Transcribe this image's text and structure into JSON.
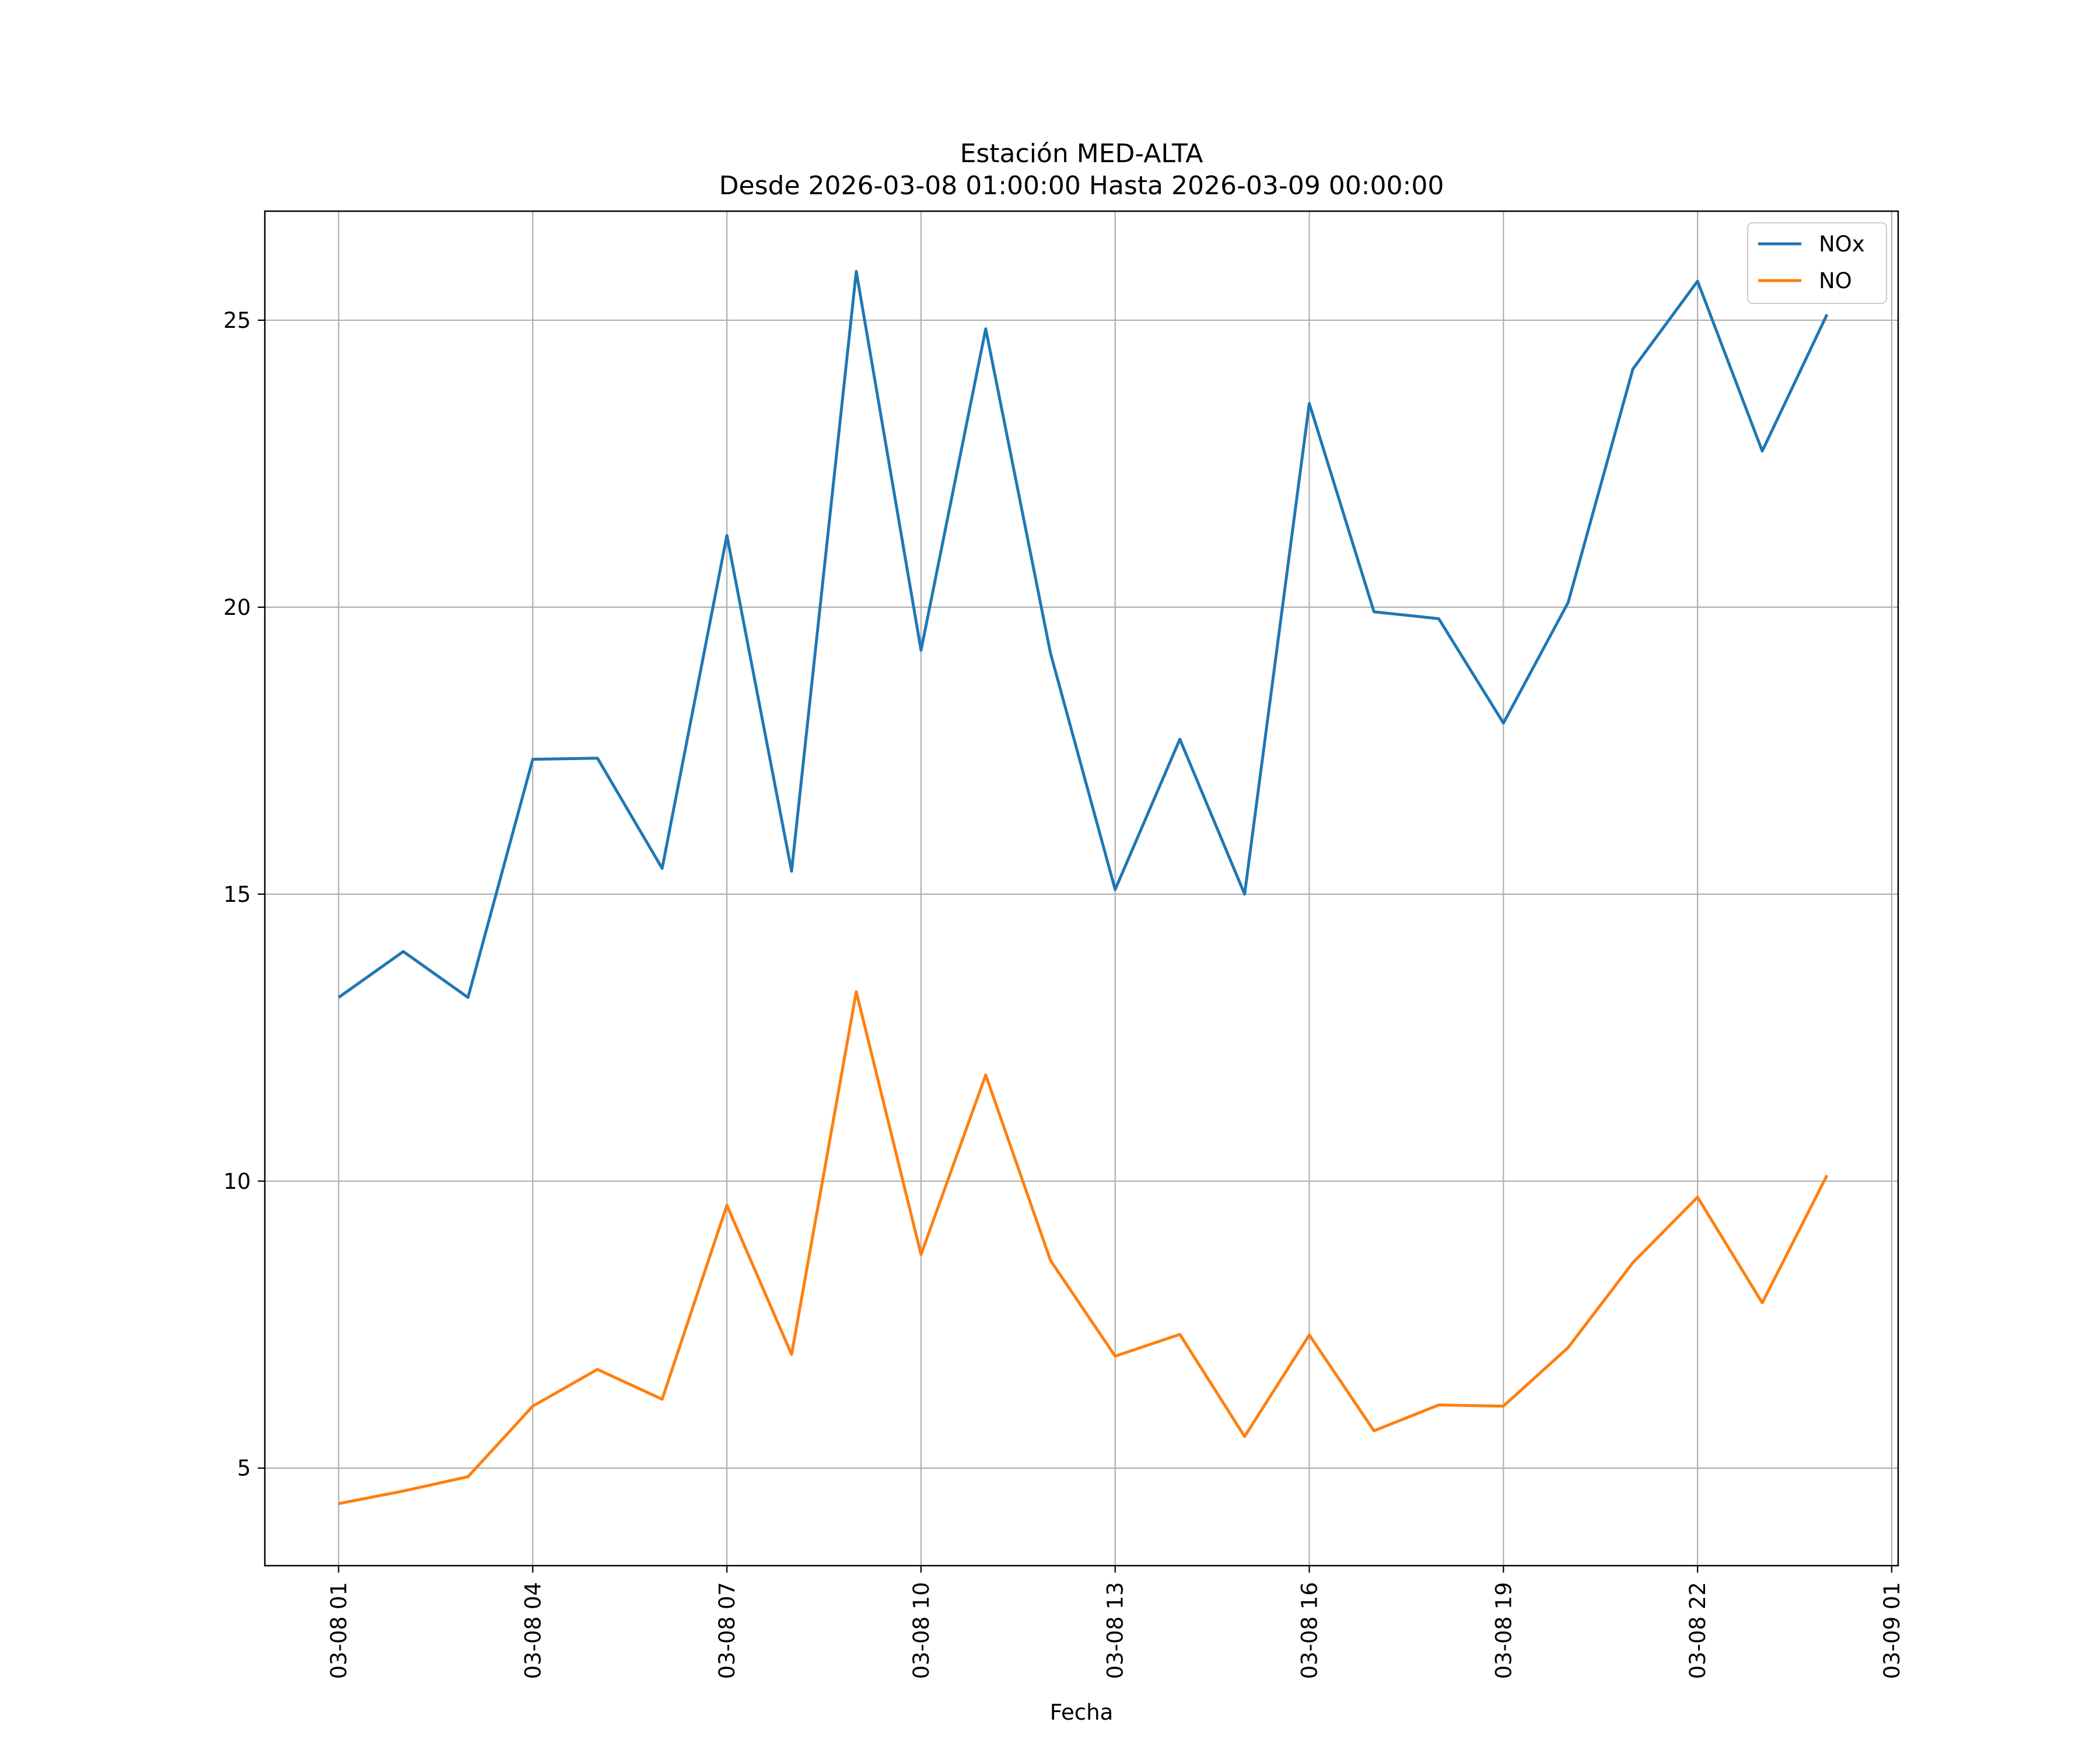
{
  "chart_data": {
    "type": "line",
    "title": "Estación MED-ALTA",
    "subtitle": "Desde 2026-03-08 01:00:00 Hasta 2026-03-09 00:00:00",
    "xlabel": "Fecha",
    "ylabel": "",
    "x": [
      "2026-03-08 01:00",
      "2026-03-08 02:00",
      "2026-03-08 03:00",
      "2026-03-08 04:00",
      "2026-03-08 05:00",
      "2026-03-08 06:00",
      "2026-03-08 07:00",
      "2026-03-08 08:00",
      "2026-03-08 09:00",
      "2026-03-08 10:00",
      "2026-03-08 11:00",
      "2026-03-08 12:00",
      "2026-03-08 13:00",
      "2026-03-08 14:00",
      "2026-03-08 15:00",
      "2026-03-08 16:00",
      "2026-03-08 17:00",
      "2026-03-08 18:00",
      "2026-03-08 19:00",
      "2026-03-08 20:00",
      "2026-03-08 21:00",
      "2026-03-08 22:00",
      "2026-03-08 23:00",
      "2026-03-09 00:00"
    ],
    "x_hours": [
      0,
      1,
      2,
      3,
      4,
      5,
      6,
      7,
      8,
      9,
      10,
      11,
      12,
      13,
      14,
      15,
      16,
      17,
      18,
      19,
      20,
      21,
      22,
      23
    ],
    "xlim": [
      -1.14,
      24.1
    ],
    "ylim": [
      3.3,
      26.9
    ],
    "xticks": [
      {
        "hour": 0,
        "label": "03-08 01"
      },
      {
        "hour": 3,
        "label": "03-08 04"
      },
      {
        "hour": 6,
        "label": "03-08 07"
      },
      {
        "hour": 9,
        "label": "03-08 10"
      },
      {
        "hour": 12,
        "label": "03-08 13"
      },
      {
        "hour": 15,
        "label": "03-08 16"
      },
      {
        "hour": 18,
        "label": "03-08 19"
      },
      {
        "hour": 21,
        "label": "03-08 22"
      },
      {
        "hour": 24,
        "label": "03-09 01"
      }
    ],
    "yticks": [
      {
        "value": 5,
        "label": "5"
      },
      {
        "value": 10,
        "label": "10"
      },
      {
        "value": 15,
        "label": "15"
      },
      {
        "value": 20,
        "label": "20"
      },
      {
        "value": 25,
        "label": "25"
      }
    ],
    "grid": true,
    "legend_position": "top-right",
    "series": [
      {
        "name": "NOx",
        "color": "#1f77b4",
        "values": [
          13.2,
          14.0,
          13.2,
          17.35,
          17.37,
          15.45,
          21.25,
          15.4,
          25.85,
          19.25,
          24.85,
          19.2,
          15.08,
          17.7,
          15.0,
          23.55,
          19.92,
          19.8,
          17.98,
          20.08,
          24.15,
          25.68,
          22.72,
          25.1
        ]
      },
      {
        "name": "NO",
        "color": "#ff7f0e",
        "values": [
          4.38,
          4.6,
          4.85,
          6.08,
          6.72,
          6.2,
          9.58,
          6.98,
          13.3,
          8.72,
          11.85,
          8.62,
          6.95,
          7.33,
          5.55,
          7.32,
          5.65,
          6.1,
          6.08,
          7.1,
          8.58,
          9.72,
          7.88,
          10.1
        ]
      }
    ]
  }
}
